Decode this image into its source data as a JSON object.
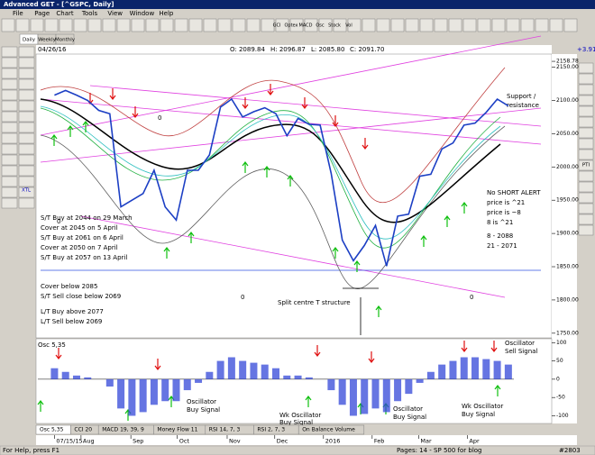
{
  "window": {
    "title": "Advanced GET - [^GSPC, Daily]"
  },
  "menu": [
    "File",
    "Page",
    "Chart",
    "Tools",
    "View",
    "Window",
    "Help"
  ],
  "toolbar": [
    "GCI",
    "Optex",
    "MACD",
    "Osc",
    "Stock",
    "Vol"
  ],
  "side_tools": [
    "XTL",
    "PTI"
  ],
  "tabs": [
    "Daily",
    "Weekly",
    "Monthly"
  ],
  "quote": {
    "date": "04/26/16",
    "open": "O: 2089.84",
    "high": "H: 2096.87",
    "low": "L: 2085.80",
    "close": "C: 2091.70",
    "change": "+3.91"
  },
  "chart_data": [
    {
      "type": "line",
      "color": "#1c3fc4",
      "values": [
        2108,
        2115,
        2108,
        2100,
        2085,
        2080,
        1940,
        1950,
        1960,
        1995,
        1940,
        1920,
        1995,
        1995,
        2018,
        2090,
        2102,
        2075,
        2083,
        2089,
        2080,
        2047,
        2073,
        2064,
        2063,
        1990,
        1890,
        1859,
        1882,
        1912,
        1851,
        1926,
        1929,
        1986,
        1989,
        2027,
        2036,
        2063,
        2066,
        2082,
        2102,
        2091.7
      ],
      "xlim": [
        -1.5,
        41.5
      ],
      "xticks": [
        {
          "value": 0,
          "label": "07/15/15"
        },
        {
          "value": 2.4,
          "label": "Aug"
        },
        {
          "value": 6.9,
          "label": "Sep"
        },
        {
          "value": 11.1,
          "label": "Oct"
        },
        {
          "value": 15.6,
          "label": "Nov"
        },
        {
          "value": 19.9,
          "label": "Dec"
        },
        {
          "value": 24.3,
          "label": "2016"
        },
        {
          "value": 28.7,
          "label": "Feb"
        },
        {
          "value": 32.9,
          "label": "Mar"
        },
        {
          "value": 37.3,
          "label": "Apr"
        }
      ],
      "ylim": [
        1743,
        2167
      ],
      "yticks": [
        {
          "value": 2158.78,
          "label": "2158.78"
        },
        {
          "value": 2150,
          "label": "2150.00"
        },
        {
          "value": 2100,
          "label": "2100.00"
        },
        {
          "value": 2050,
          "label": "2050.00"
        },
        {
          "value": 2000,
          "label": "2000.00"
        },
        {
          "value": 1950,
          "label": "1950.00"
        },
        {
          "value": 1900,
          "label": "1900.00"
        },
        {
          "value": 1850,
          "label": "1850.00"
        },
        {
          "value": 1800,
          "label": "1800.00"
        },
        {
          "value": 1750,
          "label": "1750.00"
        }
      ],
      "annotations": [
        "Support /",
        "resistance",
        "No SHORT ALERT",
        "price is ^21",
        "price is ~8",
        "8 is ^21",
        "8   - 2088",
        "21 - 2071",
        "S/T Buy at 2044 on 29 March",
        "Cover at 2045 on 5 April",
        "S/T Buy at 2061 on 6 April",
        "Cover at 2050 on 7 April",
        "S/T Buy at 2057 on 13 April",
        "Cover below 2085",
        "S/T Sell close below 2069",
        "L/T Buy above 2077",
        "L/T Sell below 2069",
        "Split centre T structure",
        "0",
        "0",
        "0",
        "0"
      ]
    },
    {
      "type": "bar",
      "label": "Osc 5,35",
      "color": "#3347d8",
      "values": [
        30,
        20,
        10,
        5,
        0,
        -20,
        -80,
        -100,
        -90,
        -70,
        -60,
        -60,
        -30,
        -10,
        20,
        50,
        60,
        50,
        45,
        40,
        30,
        10,
        10,
        5,
        0,
        -30,
        -70,
        -100,
        -95,
        -80,
        -90,
        -60,
        -40,
        -10,
        20,
        40,
        50,
        60,
        60,
        55,
        50,
        40
      ],
      "xlim": [
        -1.5,
        41.5
      ],
      "ylim": [
        -121,
        113
      ],
      "yticks": [
        100,
        50,
        0,
        -50,
        -100
      ],
      "annotations": [
        "Oscillator",
        "Sell Signal",
        "Oscillator",
        "Buy Signal",
        "Wk Oscillator",
        "Buy Signal",
        "Oscillator",
        "Buy Signal",
        "Wk Oscillator",
        "Buy Signal"
      ]
    }
  ],
  "indicator_tabs": [
    "Osc 5,35",
    "CCI 20",
    "MACD 19, 39, 9",
    "Money Flow 11",
    "RSI 14, 7, 3",
    "RSI 2, 7, 3",
    "On Balance Volume"
  ],
  "status": {
    "help": "For Help, press F1",
    "page": "Pages: 14 - SP 500 for blog",
    "id": "#2803"
  }
}
